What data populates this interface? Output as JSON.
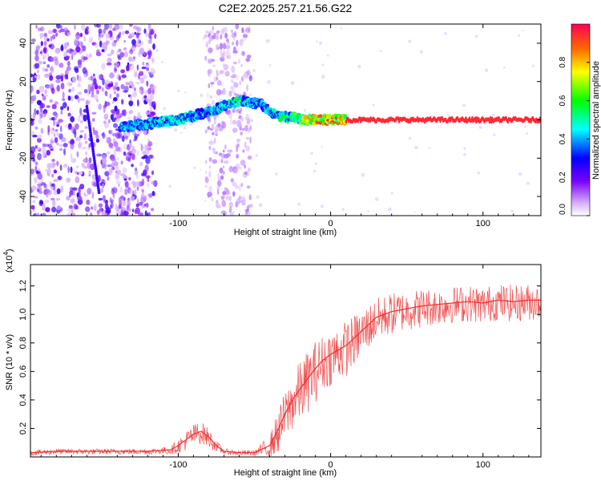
{
  "title": "C2E2.2025.257.21.56.G22",
  "colors": {
    "spectrum_low": "#b9a6ff",
    "spectrum_high": "#e8003a",
    "snr_line": "#ef2e2e"
  },
  "chart_data": [
    {
      "type": "heatmap",
      "name": "spectrogram",
      "xlabel": "Height of straight line (km)",
      "ylabel": "Frequency (Hz)",
      "xlim": [
        -197,
        138
      ],
      "ylim": [
        -50,
        50
      ],
      "x_ticks": [
        -100,
        0,
        100
      ],
      "x_tick_labels": [
        "-100",
        "0",
        "100"
      ],
      "y_ticks": [
        40,
        20,
        0,
        -20,
        -40
      ],
      "y_tick_labels": [
        "40",
        "20",
        "0",
        "-20",
        "-40"
      ],
      "colorbar": {
        "label": "Normalized spectral amplitude",
        "range": [
          0,
          1
        ],
        "ticks": [
          0.0,
          0.2,
          0.4,
          0.6,
          0.8
        ],
        "tick_labels": [
          "0.0",
          "0.2",
          "0.4",
          "0.6",
          "0.8"
        ]
      },
      "features": [
        {
          "name": "main_signal_trace",
          "x": [
            -138,
            -120,
            -100,
            -80,
            -60,
            -45,
            -35,
            -25,
            -15,
            0,
            10,
            138
          ],
          "y": [
            -4,
            -2,
            0,
            4,
            10,
            8,
            2,
            1,
            0,
            0,
            0,
            0
          ],
          "amplitude": [
            0.4,
            0.45,
            0.45,
            0.45,
            0.5,
            0.4,
            0.5,
            0.6,
            0.8,
            0.9,
            0.95,
            0.95
          ]
        },
        {
          "name": "diagonal_streak",
          "x": [
            -160,
            -152
          ],
          "y": [
            7,
            -38
          ],
          "amplitude": 0.25
        },
        {
          "name": "noise_band",
          "x_range": [
            -197,
            -115
          ],
          "y_range": [
            -50,
            50
          ],
          "amplitude": 0.1
        },
        {
          "name": "noise_band",
          "x_range": [
            -82,
            -52
          ],
          "y_range": [
            -50,
            50
          ],
          "amplitude": 0.05
        }
      ]
    },
    {
      "type": "line",
      "name": "snr",
      "xlabel": "Height of straight line (km)",
      "ylabel": "SNR (10 * v/v)",
      "scale_label": "(x10",
      "scale_exponent": "4",
      "xlim": [
        -197,
        138
      ],
      "ylim": [
        0,
        1.35
      ],
      "x_ticks": [
        -100,
        0,
        100
      ],
      "x_tick_labels": [
        "-100",
        "0",
        "100"
      ],
      "y_ticks": [
        0.2,
        0.4,
        0.6,
        0.8,
        1.0,
        1.2
      ],
      "y_tick_labels": [
        "0.2",
        "0.4",
        "0.6",
        "0.8",
        "1.0",
        "1.2"
      ],
      "series": [
        {
          "name": "SNR",
          "x": [
            -197,
            -180,
            -160,
            -140,
            -120,
            -105,
            -100,
            -95,
            -90,
            -85,
            -80,
            -75,
            -70,
            -60,
            -50,
            -40,
            -35,
            -30,
            -25,
            -20,
            -15,
            -10,
            -5,
            0,
            5,
            10,
            15,
            20,
            25,
            30,
            40,
            50,
            60,
            70,
            80,
            90,
            100,
            110,
            120,
            130,
            138
          ],
          "y": [
            0.03,
            0.04,
            0.04,
            0.04,
            0.04,
            0.05,
            0.08,
            0.12,
            0.16,
            0.18,
            0.14,
            0.08,
            0.04,
            0.03,
            0.03,
            0.08,
            0.18,
            0.3,
            0.4,
            0.48,
            0.55,
            0.62,
            0.68,
            0.72,
            0.75,
            0.78,
            0.83,
            0.88,
            0.93,
            0.98,
            1.02,
            1.04,
            1.06,
            1.07,
            1.08,
            1.09,
            1.08,
            1.1,
            1.09,
            1.1,
            1.1
          ],
          "noise": [
            0.02,
            0.02,
            0.02,
            0.02,
            0.02,
            0.03,
            0.05,
            0.07,
            0.08,
            0.08,
            0.07,
            0.04,
            0.02,
            0.02,
            0.02,
            0.08,
            0.15,
            0.18,
            0.2,
            0.22,
            0.22,
            0.22,
            0.2,
            0.2,
            0.2,
            0.2,
            0.18,
            0.17,
            0.16,
            0.15,
            0.15,
            0.14,
            0.14,
            0.13,
            0.13,
            0.13,
            0.13,
            0.13,
            0.13,
            0.13,
            0.13
          ]
        }
      ]
    }
  ]
}
